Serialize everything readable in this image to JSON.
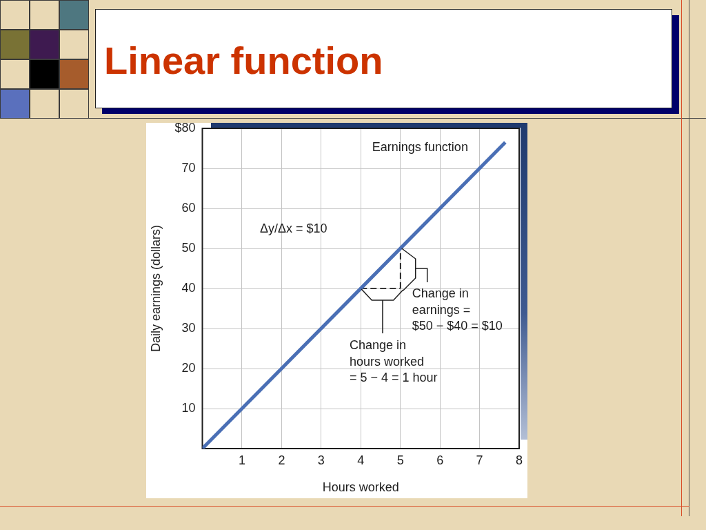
{
  "chart_data": {
    "type": "line",
    "title": "Linear function",
    "xlabel": "Hours worked",
    "ylabel": "Daily earnings (dollars)",
    "series": [
      {
        "name": "Earnings function",
        "color": "#4a6fb5",
        "x": [
          0,
          7.65
        ],
        "values": [
          0,
          76.5
        ]
      },
      {
        "color": "#000000",
        "x": [
          4,
          5
        ],
        "values": [
          40,
          40
        ],
        "line_style": "dashed"
      },
      {
        "color": "#000000",
        "x": [
          5,
          5
        ],
        "values": [
          40,
          50
        ],
        "line_style": "dashed"
      }
    ],
    "xlim": [
      0,
      8
    ],
    "xticks": [
      1,
      2,
      3,
      4,
      5,
      6,
      7,
      8
    ],
    "ylim": [
      0,
      80
    ],
    "yticks": [
      10,
      20,
      30,
      40,
      50,
      60,
      70,
      {
        "value": 80,
        "label": "$80"
      }
    ],
    "grid": true,
    "legend": false,
    "marker": "none",
    "line_style": "solid",
    "annotations": [
      "Δy/Δx = $10",
      {
        "text": "Change in\nearnings =\n$50 − $40 = $10",
        "x": 5,
        "y": 45
      },
      "Change in\nhours worked\n= 5 − 4 = 1 hour"
    ]
  }
}
